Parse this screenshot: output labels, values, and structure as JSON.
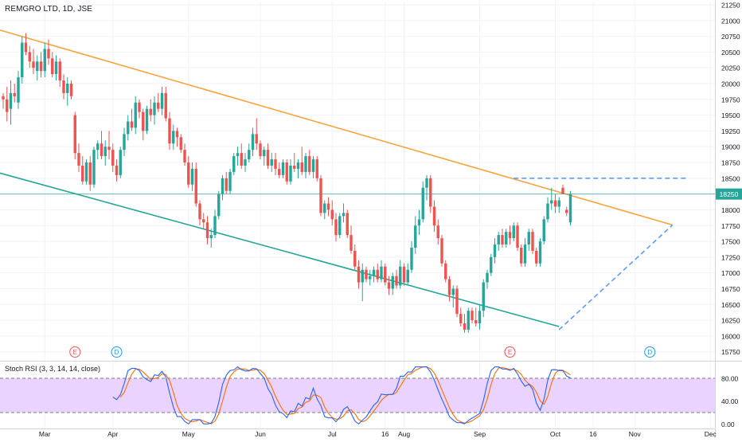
{
  "chart_data": {
    "type": "candlestick",
    "title": "REMGRO LTD, 1D, JSE",
    "x_tick_labels": [
      "Mar",
      "Apr",
      "May",
      "Jun",
      "Jul",
      "16",
      "Aug",
      "Sep",
      "Oct",
      "16",
      "Nov",
      "Dec"
    ],
    "y_ticks": [
      21250,
      21000,
      20750,
      20500,
      20250,
      20000,
      19750,
      19500,
      19250,
      19000,
      18750,
      18500,
      18250,
      18000,
      17750,
      17500,
      17250,
      17000,
      16750,
      16500,
      16250,
      16000,
      15750
    ],
    "ylim": [
      15620,
      21300
    ],
    "last_price_label": "18250",
    "last_price": 18250,
    "candles": [
      {
        "o": 19800,
        "h": 19850,
        "l": 19600,
        "c": 19750
      },
      {
        "o": 19750,
        "h": 19950,
        "l": 19400,
        "c": 19550
      },
      {
        "o": 19600,
        "h": 20050,
        "l": 19350,
        "c": 19850
      },
      {
        "o": 19850,
        "h": 20000,
        "l": 19700,
        "c": 19800
      },
      {
        "o": 19700,
        "h": 20200,
        "l": 19600,
        "c": 20100
      },
      {
        "o": 20100,
        "h": 20750,
        "l": 20000,
        "c": 20650
      },
      {
        "o": 20650,
        "h": 20800,
        "l": 20450,
        "c": 20500
      },
      {
        "o": 20500,
        "h": 20600,
        "l": 20250,
        "c": 20350
      },
      {
        "o": 20350,
        "h": 20550,
        "l": 20150,
        "c": 20250
      },
      {
        "o": 20200,
        "h": 20450,
        "l": 20050,
        "c": 20350
      },
      {
        "o": 20350,
        "h": 20500,
        "l": 20100,
        "c": 20200
      },
      {
        "o": 20200,
        "h": 20650,
        "l": 20100,
        "c": 20550
      },
      {
        "o": 20550,
        "h": 20700,
        "l": 20300,
        "c": 20400
      },
      {
        "o": 20400,
        "h": 20500,
        "l": 20100,
        "c": 20150
      },
      {
        "o": 20150,
        "h": 20450,
        "l": 20050,
        "c": 20350
      },
      {
        "o": 20350,
        "h": 20400,
        "l": 19950,
        "c": 20050
      },
      {
        "o": 20050,
        "h": 20150,
        "l": 19750,
        "c": 19850
      },
      {
        "o": 19850,
        "h": 20100,
        "l": 19650,
        "c": 20000
      },
      {
        "o": 20000,
        "h": 20050,
        "l": 19750,
        "c": 19800
      },
      {
        "o": 19500,
        "h": 19550,
        "l": 18800,
        "c": 18900
      },
      {
        "o": 18900,
        "h": 19050,
        "l": 18600,
        "c": 18700
      },
      {
        "o": 18700,
        "h": 18850,
        "l": 18400,
        "c": 18450
      },
      {
        "o": 18450,
        "h": 18800,
        "l": 18400,
        "c": 18750
      },
      {
        "o": 18750,
        "h": 18850,
        "l": 18300,
        "c": 18400
      },
      {
        "o": 18400,
        "h": 19000,
        "l": 18350,
        "c": 18950
      },
      {
        "o": 18950,
        "h": 19100,
        "l": 18800,
        "c": 19050
      },
      {
        "o": 19050,
        "h": 19250,
        "l": 18800,
        "c": 18850
      },
      {
        "o": 18850,
        "h": 19100,
        "l": 18700,
        "c": 19000
      },
      {
        "o": 19000,
        "h": 19250,
        "l": 18800,
        "c": 18950
      },
      {
        "o": 18950,
        "h": 19050,
        "l": 18600,
        "c": 18700
      },
      {
        "o": 18700,
        "h": 18800,
        "l": 18450,
        "c": 18550
      },
      {
        "o": 18550,
        "h": 19000,
        "l": 18500,
        "c": 18950
      },
      {
        "o": 18950,
        "h": 19300,
        "l": 18850,
        "c": 19200
      },
      {
        "o": 19200,
        "h": 19500,
        "l": 19100,
        "c": 19400
      },
      {
        "o": 19400,
        "h": 19600,
        "l": 19250,
        "c": 19300
      },
      {
        "o": 19300,
        "h": 19800,
        "l": 19200,
        "c": 19700
      },
      {
        "o": 19700,
        "h": 19750,
        "l": 19450,
        "c": 19550
      },
      {
        "o": 19550,
        "h": 19600,
        "l": 19100,
        "c": 19250
      },
      {
        "o": 19250,
        "h": 19650,
        "l": 19200,
        "c": 19600
      },
      {
        "o": 19600,
        "h": 19750,
        "l": 19400,
        "c": 19500
      },
      {
        "o": 19500,
        "h": 19800,
        "l": 19350,
        "c": 19700
      },
      {
        "o": 19700,
        "h": 19850,
        "l": 19550,
        "c": 19600
      },
      {
        "o": 19600,
        "h": 19950,
        "l": 19500,
        "c": 19850
      },
      {
        "o": 19850,
        "h": 19950,
        "l": 19400,
        "c": 19450
      },
      {
        "o": 19450,
        "h": 19550,
        "l": 18950,
        "c": 19050
      },
      {
        "o": 19050,
        "h": 19350,
        "l": 18950,
        "c": 19250
      },
      {
        "o": 19250,
        "h": 19300,
        "l": 19000,
        "c": 19150
      },
      {
        "o": 19150,
        "h": 19200,
        "l": 18900,
        "c": 18950
      },
      {
        "o": 18950,
        "h": 19050,
        "l": 18700,
        "c": 18750
      },
      {
        "o": 18750,
        "h": 18850,
        "l": 18350,
        "c": 18400
      },
      {
        "o": 18400,
        "h": 18750,
        "l": 18300,
        "c": 18650
      },
      {
        "o": 18650,
        "h": 18750,
        "l": 18050,
        "c": 18100
      },
      {
        "o": 18100,
        "h": 18150,
        "l": 17750,
        "c": 17850
      },
      {
        "o": 17850,
        "h": 17950,
        "l": 17700,
        "c": 17800
      },
      {
        "o": 17800,
        "h": 17900,
        "l": 17450,
        "c": 17550
      },
      {
        "o": 17550,
        "h": 17700,
        "l": 17400,
        "c": 17600
      },
      {
        "o": 17600,
        "h": 18000,
        "l": 17550,
        "c": 17900
      },
      {
        "o": 17900,
        "h": 18300,
        "l": 17850,
        "c": 18250
      },
      {
        "o": 18250,
        "h": 18550,
        "l": 18150,
        "c": 18500
      },
      {
        "o": 18500,
        "h": 18600,
        "l": 18250,
        "c": 18300
      },
      {
        "o": 18300,
        "h": 18650,
        "l": 18250,
        "c": 18600
      },
      {
        "o": 18600,
        "h": 18900,
        "l": 18550,
        "c": 18850
      },
      {
        "o": 18850,
        "h": 19000,
        "l": 18700,
        "c": 18900
      },
      {
        "o": 18900,
        "h": 19050,
        "l": 18650,
        "c": 18700
      },
      {
        "o": 18700,
        "h": 18900,
        "l": 18600,
        "c": 18800
      },
      {
        "o": 18800,
        "h": 19050,
        "l": 18750,
        "c": 18950
      },
      {
        "o": 18950,
        "h": 19300,
        "l": 18850,
        "c": 19200
      },
      {
        "o": 19200,
        "h": 19450,
        "l": 18950,
        "c": 19050
      },
      {
        "o": 19050,
        "h": 19100,
        "l": 18800,
        "c": 18850
      },
      {
        "o": 18850,
        "h": 19000,
        "l": 18700,
        "c": 18950
      },
      {
        "o": 18950,
        "h": 19050,
        "l": 18650,
        "c": 18700
      },
      {
        "o": 18700,
        "h": 18900,
        "l": 18600,
        "c": 18800
      },
      {
        "o": 18800,
        "h": 18900,
        "l": 18550,
        "c": 18650
      },
      {
        "o": 18650,
        "h": 18750,
        "l": 18500,
        "c": 18550
      },
      {
        "o": 18550,
        "h": 18800,
        "l": 18500,
        "c": 18750
      },
      {
        "o": 18750,
        "h": 18800,
        "l": 18400,
        "c": 18450
      },
      {
        "o": 18450,
        "h": 18800,
        "l": 18400,
        "c": 18700
      },
      {
        "o": 18700,
        "h": 18900,
        "l": 18600,
        "c": 18650
      },
      {
        "o": 18650,
        "h": 18800,
        "l": 18500,
        "c": 18750
      },
      {
        "o": 18750,
        "h": 19000,
        "l": 18550,
        "c": 18600
      },
      {
        "o": 18600,
        "h": 18900,
        "l": 18500,
        "c": 18850
      },
      {
        "o": 18850,
        "h": 18950,
        "l": 18550,
        "c": 18600
      },
      {
        "o": 18600,
        "h": 18850,
        "l": 18500,
        "c": 18800
      },
      {
        "o": 18800,
        "h": 18850,
        "l": 18450,
        "c": 18500
      },
      {
        "o": 18500,
        "h": 18550,
        "l": 17900,
        "c": 17950
      },
      {
        "o": 17950,
        "h": 18150,
        "l": 17850,
        "c": 18100
      },
      {
        "o": 18100,
        "h": 18200,
        "l": 17900,
        "c": 18000
      },
      {
        "o": 18000,
        "h": 18150,
        "l": 17750,
        "c": 17850
      },
      {
        "o": 17850,
        "h": 17950,
        "l": 17500,
        "c": 17600
      },
      {
        "o": 17600,
        "h": 17950,
        "l": 17550,
        "c": 17900
      },
      {
        "o": 17900,
        "h": 18100,
        "l": 17800,
        "c": 17950
      },
      {
        "o": 17950,
        "h": 18000,
        "l": 17550,
        "c": 17600
      },
      {
        "o": 17600,
        "h": 17750,
        "l": 17300,
        "c": 17350
      },
      {
        "o": 17350,
        "h": 17450,
        "l": 17050,
        "c": 17100
      },
      {
        "o": 17100,
        "h": 17200,
        "l": 16750,
        "c": 16850
      },
      {
        "o": 16850,
        "h": 17150,
        "l": 16550,
        "c": 17050
      },
      {
        "o": 17050,
        "h": 17100,
        "l": 16850,
        "c": 16900
      },
      {
        "o": 16900,
        "h": 17050,
        "l": 16800,
        "c": 16950
      },
      {
        "o": 16950,
        "h": 17100,
        "l": 16850,
        "c": 17050
      },
      {
        "o": 17050,
        "h": 17150,
        "l": 16850,
        "c": 16900
      },
      {
        "o": 16900,
        "h": 17200,
        "l": 16850,
        "c": 17100
      },
      {
        "o": 17100,
        "h": 17150,
        "l": 16800,
        "c": 16850
      },
      {
        "o": 16850,
        "h": 16950,
        "l": 16650,
        "c": 16750
      },
      {
        "o": 16750,
        "h": 17000,
        "l": 16650,
        "c": 16950
      },
      {
        "o": 16950,
        "h": 17050,
        "l": 16750,
        "c": 16800
      },
      {
        "o": 16800,
        "h": 17200,
        "l": 16750,
        "c": 17100
      },
      {
        "o": 17100,
        "h": 17150,
        "l": 16800,
        "c": 16850
      },
      {
        "o": 16850,
        "h": 17150,
        "l": 16800,
        "c": 17050
      },
      {
        "o": 17050,
        "h": 17500,
        "l": 17000,
        "c": 17400
      },
      {
        "o": 17400,
        "h": 17900,
        "l": 17300,
        "c": 17750
      },
      {
        "o": 17750,
        "h": 18000,
        "l": 17600,
        "c": 17850
      },
      {
        "o": 17850,
        "h": 18450,
        "l": 17800,
        "c": 18350
      },
      {
        "o": 18350,
        "h": 18550,
        "l": 18150,
        "c": 18500
      },
      {
        "o": 18500,
        "h": 18550,
        "l": 17950,
        "c": 18050
      },
      {
        "o": 18050,
        "h": 18150,
        "l": 17650,
        "c": 17750
      },
      {
        "o": 17750,
        "h": 17850,
        "l": 17450,
        "c": 17550
      },
      {
        "o": 17550,
        "h": 17600,
        "l": 17100,
        "c": 17150
      },
      {
        "o": 17150,
        "h": 17200,
        "l": 16850,
        "c": 16900
      },
      {
        "o": 16900,
        "h": 16950,
        "l": 16550,
        "c": 16650
      },
      {
        "o": 16650,
        "h": 16800,
        "l": 16450,
        "c": 16750
      },
      {
        "o": 16750,
        "h": 16800,
        "l": 16300,
        "c": 16350
      },
      {
        "o": 16350,
        "h": 16450,
        "l": 16150,
        "c": 16200
      },
      {
        "o": 16200,
        "h": 16350,
        "l": 16050,
        "c": 16100
      },
      {
        "o": 16100,
        "h": 16450,
        "l": 16050,
        "c": 16400
      },
      {
        "o": 16400,
        "h": 16450,
        "l": 16200,
        "c": 16250
      },
      {
        "o": 16250,
        "h": 16450,
        "l": 16150,
        "c": 16200
      },
      {
        "o": 16200,
        "h": 16500,
        "l": 16100,
        "c": 16400
      },
      {
        "o": 16400,
        "h": 16900,
        "l": 16300,
        "c": 16850
      },
      {
        "o": 16850,
        "h": 17050,
        "l": 16750,
        "c": 17000
      },
      {
        "o": 17000,
        "h": 17300,
        "l": 16950,
        "c": 17250
      },
      {
        "o": 17250,
        "h": 17550,
        "l": 17150,
        "c": 17450
      },
      {
        "o": 17450,
        "h": 17650,
        "l": 17350,
        "c": 17600
      },
      {
        "o": 17600,
        "h": 17700,
        "l": 17400,
        "c": 17450
      },
      {
        "o": 17450,
        "h": 17700,
        "l": 17400,
        "c": 17650
      },
      {
        "o": 17650,
        "h": 17750,
        "l": 17450,
        "c": 17550
      },
      {
        "o": 17550,
        "h": 17800,
        "l": 17500,
        "c": 17750
      },
      {
        "o": 17750,
        "h": 17800,
        "l": 17350,
        "c": 17400
      },
      {
        "o": 17400,
        "h": 17450,
        "l": 17100,
        "c": 17150
      },
      {
        "o": 17150,
        "h": 17550,
        "l": 17100,
        "c": 17450
      },
      {
        "o": 17450,
        "h": 17700,
        "l": 17350,
        "c": 17650
      },
      {
        "o": 17650,
        "h": 17700,
        "l": 17300,
        "c": 17350
      },
      {
        "o": 17350,
        "h": 17400,
        "l": 17100,
        "c": 17150
      },
      {
        "o": 17150,
        "h": 17550,
        "l": 17100,
        "c": 17500
      },
      {
        "o": 17500,
        "h": 17900,
        "l": 17450,
        "c": 17850
      },
      {
        "o": 17850,
        "h": 18200,
        "l": 17800,
        "c": 18100
      },
      {
        "o": 18100,
        "h": 18350,
        "l": 18000,
        "c": 18150
      },
      {
        "o": 18150,
        "h": 18250,
        "l": 17950,
        "c": 18050
      },
      {
        "o": 18050,
        "h": 18200,
        "l": 17950,
        "c": 18150
      },
      {
        "o": 18350,
        "h": 18400,
        "l": 18250,
        "c": 18250
      },
      {
        "o": 18000,
        "h": 18050,
        "l": 17900,
        "c": 17950
      },
      {
        "o": 17800,
        "h": 18300,
        "l": 17750,
        "c": 18250
      }
    ],
    "earnings_markers": [
      {
        "label": "E",
        "index": 19
      },
      {
        "label": "E",
        "index": 134
      }
    ],
    "dividend_markers": [
      {
        "label": "D",
        "index": 30
      },
      {
        "label": "D",
        "index": 171
      }
    ],
    "lines": {
      "upper_trendline": {
        "color": "#f7a43c",
        "from": {
          "index": -5,
          "price": 20920
        },
        "to": {
          "index": 177,
          "price": 17760
        }
      },
      "lower_trendline": {
        "color": "#26a69a",
        "from": {
          "index": -5,
          "price": 18650
        },
        "to": {
          "index": 147,
          "price": 16150
        }
      },
      "dashed_resistance": {
        "color": "#5b9cf6",
        "price": 18500,
        "from_index": 135,
        "to_index": 181
      },
      "dashed_support": {
        "color": "#5b9cf6",
        "from": {
          "index": 147,
          "price": 16100
        },
        "to": {
          "index": 177,
          "price": 17760
        }
      },
      "last_price_line": {
        "color": "#26a69a",
        "price": 18250
      }
    },
    "indicator": {
      "title": "Stoch RSI (3, 3, 14, 14, close)",
      "y_ticks": [
        80.0,
        40.0,
        0.0
      ],
      "ylim": [
        -8,
        108
      ],
      "band": [
        20,
        80
      ],
      "band_color": "#e6ccff",
      "k_color": "#2962ff",
      "d_color": "#ff6d00"
    },
    "colors": {
      "up": "#26a69a",
      "down": "#ef5350",
      "grid": "#f0f3fa",
      "axis_text": "#131722"
    }
  }
}
